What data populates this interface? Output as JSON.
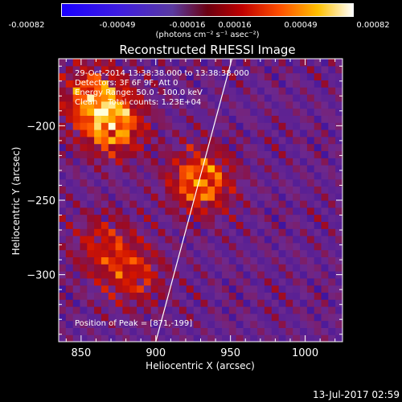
{
  "colorbar": {
    "ticks": [
      "-0.00082",
      "-0.00049",
      "-0.00016",
      "0.00016",
      "0.00049",
      "0.00082"
    ],
    "units": "(photons cm⁻² s⁻¹ asec⁻²)"
  },
  "annotations": {
    "line1": "29-Oct-2014 13:38:38.000 to 13:38:38.000",
    "line2": "Detectors: 3F 6F 9F, Att 0",
    "line3": "Energy Range: 50.0 - 100.0 keV",
    "line4": "Clean    Total counts: 1.23E+04",
    "peak": "Position of Peak = [871,-199]"
  },
  "footer": {
    "date": "13-Jul-2017 02:59"
  },
  "colors": {
    "axis": "#ffffff",
    "limb_line": "#ffffff"
  },
  "chart_data": {
    "type": "heatmap",
    "title": "Reconstructed RHESSI Image",
    "xlabel": "Heliocentric X (arcsec)",
    "ylabel": "Heliocentric Y (arcsec)",
    "xlim": [
      835,
      1025
    ],
    "ylim": [
      -345,
      -155
    ],
    "xticks": [
      850,
      900,
      950,
      1000
    ],
    "yticks": [
      -200,
      -250,
      -300
    ],
    "colormap": "hot-diverging (blue-purple-red-orange-yellow-white)",
    "zlim": [
      -0.00082,
      0.00082
    ],
    "sources": [
      {
        "x": 871,
        "y": -199,
        "rel_intensity": 1.0
      },
      {
        "x": 858,
        "y": -180,
        "rel_intensity": 0.8
      },
      {
        "x": 930,
        "y": -237,
        "rel_intensity": 0.95
      },
      {
        "x": 885,
        "y": -300,
        "rel_intensity": 0.55
      },
      {
        "x": 865,
        "y": -280,
        "rel_intensity": 0.5
      }
    ],
    "limb_line": [
      [
        900,
        -345
      ],
      [
        951,
        -155
      ]
    ],
    "grid": false
  }
}
